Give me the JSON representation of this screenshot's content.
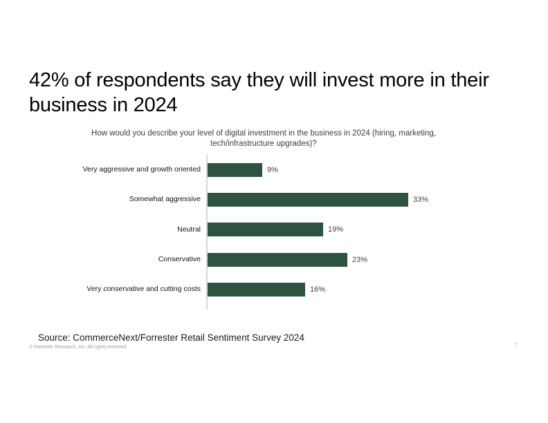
{
  "header": {
    "title": "42% of respondents say they will invest more in their business in 2024"
  },
  "chart_data": {
    "type": "bar",
    "orientation": "horizontal",
    "title": "How would you describe your level of digital investment in the business in 2024 (hiring, marketing, tech/infrastructure upgrades)?",
    "categories": [
      "Very aggressive and growth oriented",
      "Somewhat aggressive",
      "Neutral",
      "Conservative",
      "Very conservative and cutting costs"
    ],
    "values": [
      9,
      33,
      19,
      23,
      16
    ],
    "value_labels": [
      "9%",
      "33%",
      "19%",
      "23%",
      "16%"
    ],
    "xlabel": "",
    "ylabel": "",
    "xlim": [
      0,
      35
    ],
    "grid": false,
    "legend": false,
    "bar_color": "#2F5341",
    "axis_line_color": "#d6d6d6",
    "value_label_color": "#3f3f3f"
  },
  "footer": {
    "source": "Source: CommerceNext/Forrester Retail Sentiment Survey 2024",
    "copyright": "© Forrester Research, Inc. All rights reserved.",
    "page_number": "7"
  }
}
